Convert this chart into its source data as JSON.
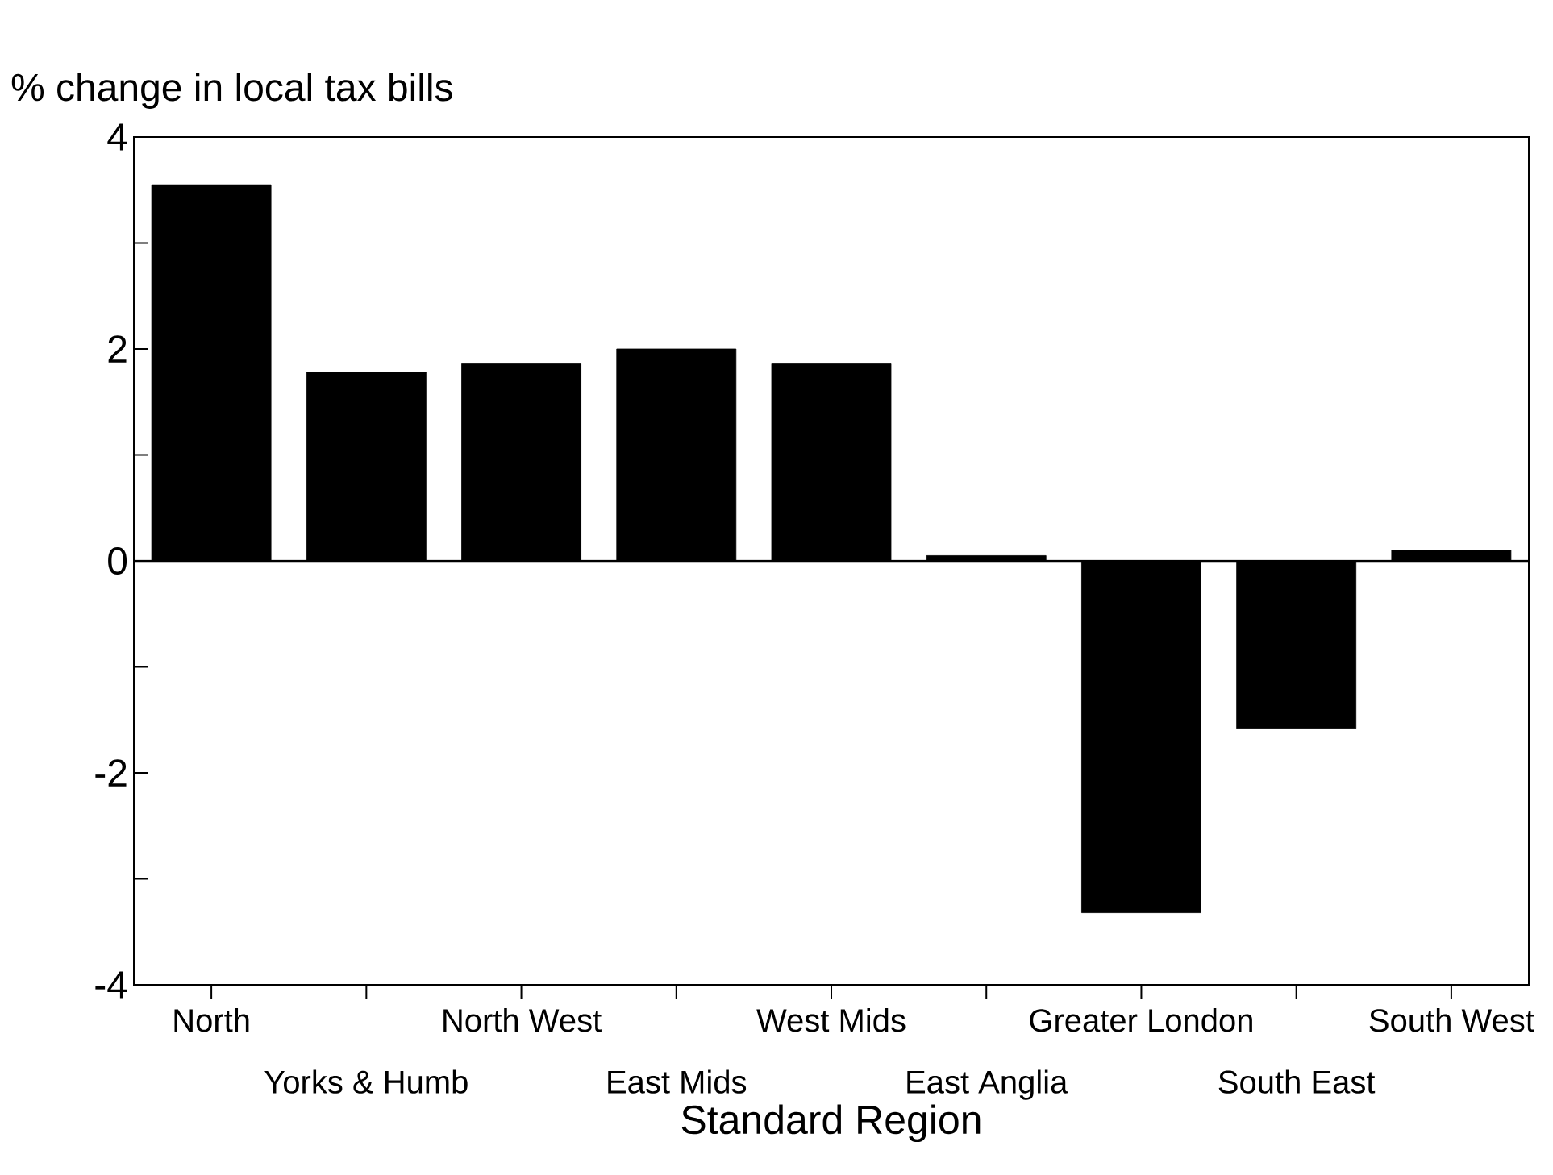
{
  "chart_data": {
    "type": "bar",
    "ylabel": "% change in local tax bills",
    "xlabel": "Standard Region",
    "categories": [
      "North",
      "Yorks & Humb",
      "North West",
      "East Mids",
      "West Mids",
      "East Anglia",
      "Greater London",
      "South East",
      "South West"
    ],
    "values": [
      3.55,
      1.78,
      1.86,
      2.0,
      1.86,
      0.05,
      -3.32,
      -1.58,
      0.1
    ],
    "color": "#000000",
    "ylim": [
      -4,
      4
    ],
    "yticks": [
      -4,
      {
        "value": -3,
        "label": null
      },
      -2,
      {
        "value": -1,
        "label": null
      },
      0,
      {
        "value": 1,
        "label": null
      },
      2,
      {
        "value": 3,
        "label": null
      },
      4
    ],
    "ref_lines": [
      {
        "axis": "y",
        "value": 0
      }
    ]
  }
}
